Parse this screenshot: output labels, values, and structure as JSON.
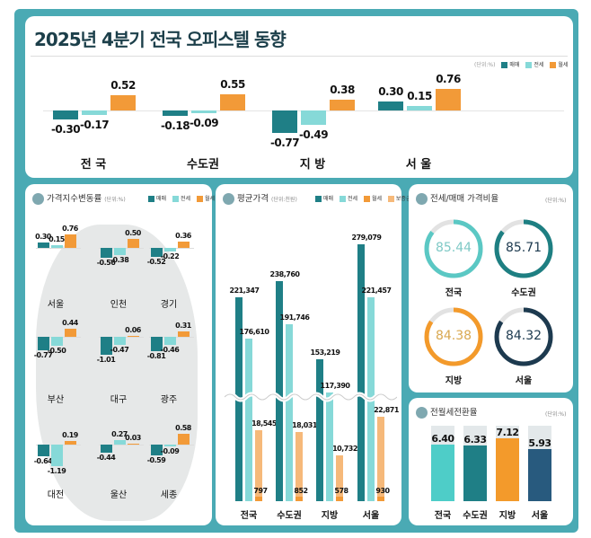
{
  "title": "2025년 4분기 전국 오피스텔 동향",
  "colors": {
    "sale": "#1f7f86",
    "jeonse": "#86d9d8",
    "monthly": "#f29a38",
    "deposit": "#f6b97a",
    "frame": "#4aaab4"
  },
  "legend": {
    "unit": "(단위:%)",
    "sale": "매매",
    "jeonse": "전세",
    "monthly": "월세",
    "deposit": "보증금"
  },
  "top_chart": {
    "type": "bar",
    "categories": [
      "전 국",
      "수도권",
      "지 방",
      "서 울"
    ],
    "series": [
      {
        "name": "매매",
        "values": [
          -0.3,
          -0.18,
          -0.77,
          0.3
        ]
      },
      {
        "name": "전세",
        "values": [
          -0.17,
          -0.09,
          -0.49,
          0.15
        ]
      },
      {
        "name": "월세",
        "values": [
          0.52,
          0.55,
          0.38,
          0.76
        ]
      }
    ],
    "labels": [
      [
        "-0.30",
        "-0.17",
        "0.52"
      ],
      [
        "-0.18",
        "-0.09",
        "0.55"
      ],
      [
        "-0.77",
        "-0.49",
        "0.38"
      ],
      [
        "0.30",
        "0.15",
        "0.76"
      ]
    ]
  },
  "chart_data": [
    {
      "type": "bar",
      "title": "가격지수변동률",
      "unit": "(단위:%)",
      "categories": [
        "서울",
        "인천",
        "경기",
        "부산",
        "대구",
        "광주",
        "대전",
        "울산",
        "세종"
      ],
      "series": [
        {
          "name": "매매",
          "values": [
            0.3,
            -0.56,
            -0.52,
            -0.77,
            -1.01,
            -0.81,
            -0.64,
            -0.44,
            -0.59
          ]
        },
        {
          "name": "전세",
          "values": [
            0.15,
            -0.38,
            -0.22,
            -0.5,
            -0.47,
            -0.46,
            -1.19,
            0.27,
            -0.09
          ]
        },
        {
          "name": "월세",
          "values": [
            0.76,
            0.5,
            0.36,
            0.44,
            0.06,
            0.31,
            0.19,
            0.03,
            0.58
          ]
        }
      ],
      "labels": [
        [
          "0.30",
          "0.15",
          "0.76"
        ],
        [
          "-0.56",
          "-0.38",
          "0.50"
        ],
        [
          "-0.52",
          "-0.22",
          "0.36"
        ],
        [
          "-0.77",
          "-0.50",
          "0.44"
        ],
        [
          "-1.01",
          "-0.47",
          "0.06"
        ],
        [
          "-0.81",
          "-0.46",
          "0.31"
        ],
        [
          "-0.64",
          "-1.19",
          "0.19"
        ],
        [
          "-0.44",
          "0.27",
          "0.03"
        ],
        [
          "-0.59",
          "-0.09",
          "0.58"
        ]
      ]
    },
    {
      "type": "bar",
      "title": "평균가격",
      "unit": "(단위:천원)",
      "categories": [
        "전국",
        "수도권",
        "지방",
        "서울"
      ],
      "broken_axis": true,
      "series": [
        {
          "name": "매매",
          "values": [
            221347,
            238760,
            153219,
            279079
          ],
          "labels": [
            "221,347",
            "238,760",
            "153,219",
            "279,079"
          ]
        },
        {
          "name": "전세",
          "values": [
            176610,
            191746,
            117390,
            221457
          ],
          "labels": [
            "176,610",
            "191,746",
            "117,390",
            "221,457"
          ]
        },
        {
          "name": "보증금",
          "values": [
            18545,
            18031,
            10732,
            22871
          ],
          "labels": [
            "18,545",
            "18,031",
            "10,732",
            "22,871"
          ]
        },
        {
          "name": "월세",
          "values": [
            797,
            852,
            578,
            930
          ],
          "labels": [
            "797",
            "852",
            "578",
            "930"
          ]
        }
      ]
    },
    {
      "type": "pie",
      "title": "전세/매매 가격비율",
      "unit": "(단위:%)",
      "categories": [
        "전국",
        "수도권",
        "지방",
        "서울"
      ],
      "values": [
        85.44,
        85.71,
        84.38,
        84.32
      ],
      "labels": [
        "85.44",
        "85.71",
        "84.38",
        "84.32"
      ],
      "colors": [
        "#5bc8c4",
        "#1e7f82",
        "#f39a2b",
        "#1d3a4f"
      ]
    },
    {
      "type": "bar",
      "title": "전월세전환율",
      "unit": "(단위:%)",
      "categories": [
        "전국",
        "수도권",
        "지방",
        "서울"
      ],
      "values": [
        6.4,
        6.33,
        7.12,
        5.93
      ],
      "labels": [
        "6.40",
        "6.33",
        "7.12",
        "5.93"
      ],
      "colors": [
        "#4ecdc8",
        "#1f7f86",
        "#f39a2b",
        "#285a7e"
      ]
    }
  ]
}
